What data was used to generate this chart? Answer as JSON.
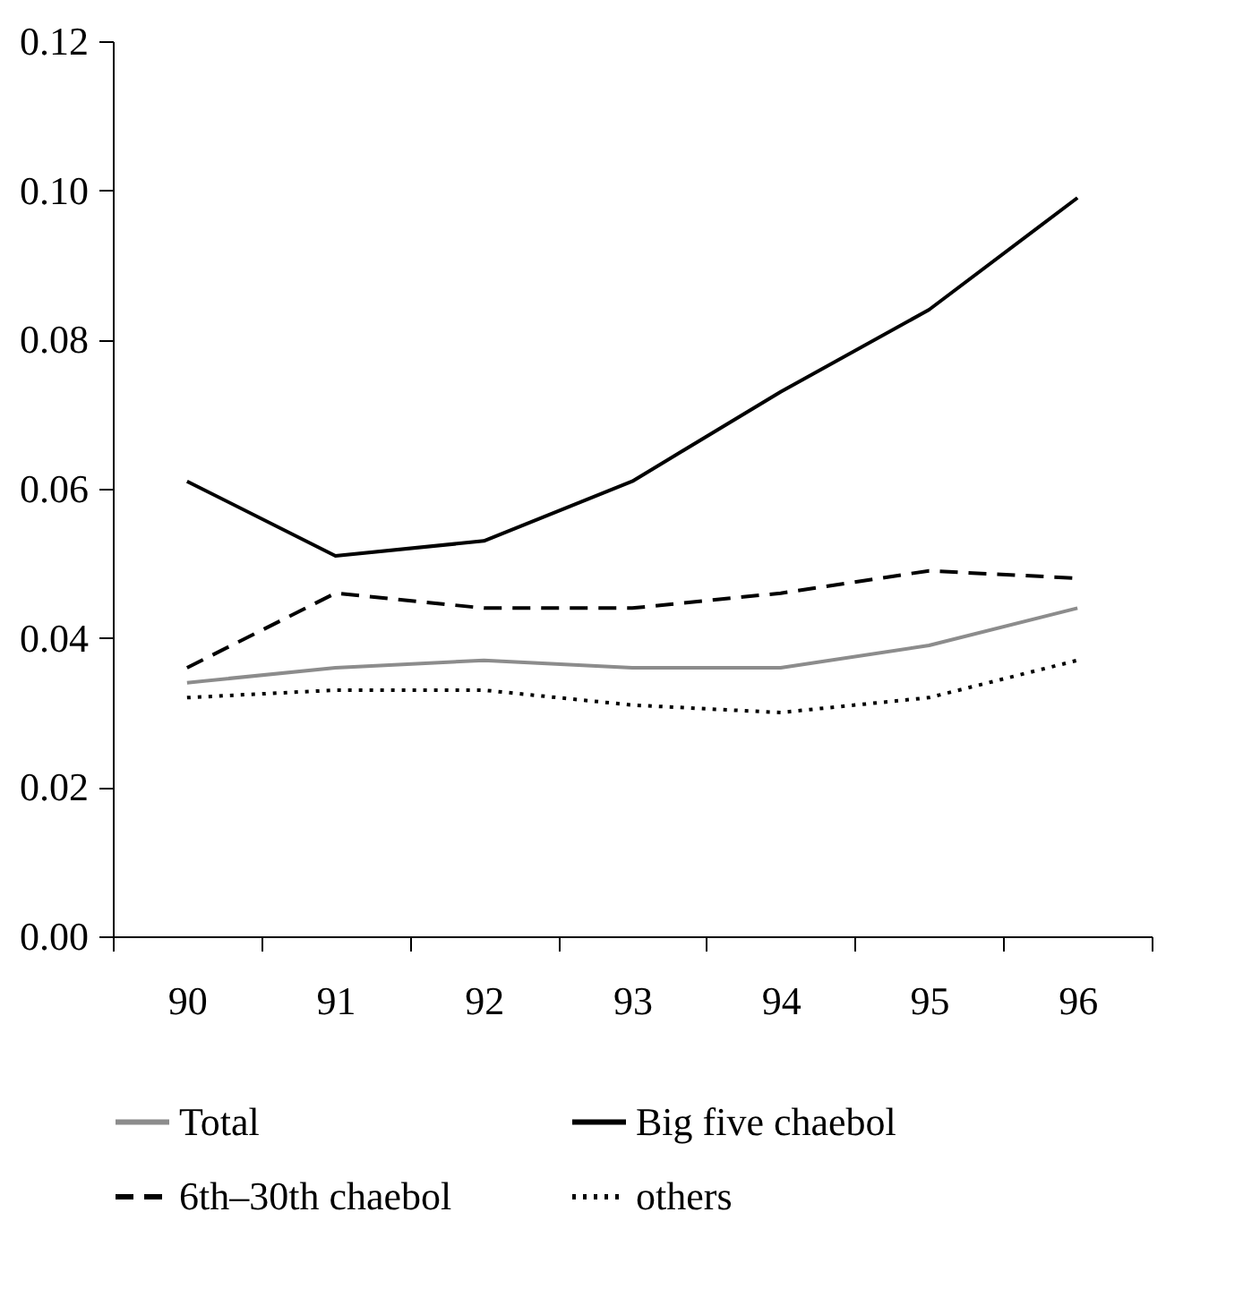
{
  "chart_data": {
    "type": "line",
    "categories": [
      "90",
      "91",
      "92",
      "93",
      "94",
      "95",
      "96"
    ],
    "series": [
      {
        "name": "Total",
        "color": "#8c8c8c",
        "line_style": "solid",
        "values": [
          0.034,
          0.036,
          0.037,
          0.036,
          0.036,
          0.039,
          0.044
        ]
      },
      {
        "name": "Big five chaebol",
        "color": "#000000",
        "line_style": "solid",
        "values": [
          0.061,
          0.051,
          0.053,
          0.061,
          0.073,
          0.084,
          0.099
        ]
      },
      {
        "name": "6th–30th chaebol",
        "color": "#000000",
        "line_style": "dashed",
        "values": [
          0.036,
          0.046,
          0.044,
          0.044,
          0.046,
          0.049,
          0.048
        ]
      },
      {
        "name": "others",
        "color": "#000000",
        "line_style": "dotted",
        "values": [
          0.032,
          0.033,
          0.033,
          0.031,
          0.03,
          0.032,
          0.037
        ]
      }
    ],
    "ylim": [
      0,
      0.12
    ],
    "yticks": [
      {
        "value": 0,
        "label": "0.00"
      },
      {
        "value": 0.02,
        "label": "0.02"
      },
      {
        "value": 0.04,
        "label": "0.04"
      },
      {
        "value": 0.06,
        "label": "0.06"
      },
      {
        "value": 0.08,
        "label": "0.08"
      },
      {
        "value": 0.1,
        "label": "0.10"
      },
      {
        "value": 0.12,
        "label": "0.12"
      }
    ],
    "grid": false,
    "legend": "bottom",
    "marker": "none"
  }
}
